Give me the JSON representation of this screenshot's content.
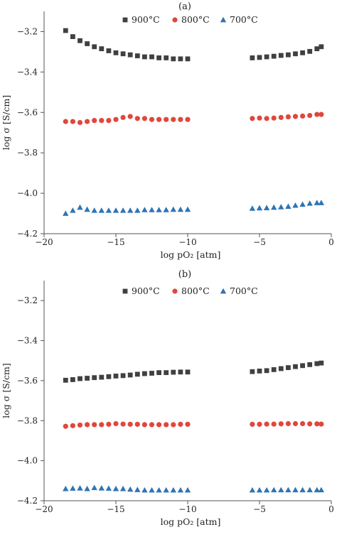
{
  "chart_data": [
    {
      "type": "scatter",
      "panel_label": "(a)",
      "xlabel": "log pO₂ [atm]",
      "ylabel": "log σ [S/cm]",
      "xlim": [
        -20,
        0
      ],
      "ylim": [
        -4.2,
        -3.1
      ],
      "xticks": [
        "−20",
        "−15",
        "−10",
        "−5",
        "0"
      ],
      "yticks": [
        "−3.2",
        "−3.4",
        "−3.6",
        "−3.8",
        "−4.0",
        "−4.2"
      ],
      "legend_position": "top",
      "grid": false,
      "series": [
        {
          "name": "900°C",
          "marker": "square",
          "color": "#404040",
          "x": [
            -18.5,
            -18.0,
            -17.5,
            -17.0,
            -16.5,
            -16.0,
            -15.5,
            -15.0,
            -14.5,
            -14.0,
            -13.5,
            -13.0,
            -12.5,
            -12.0,
            -11.5,
            -11.0,
            -10.5,
            -10.0,
            -5.5,
            -5.0,
            -4.5,
            -4.0,
            -3.5,
            -3.0,
            -2.5,
            -2.0,
            -1.5,
            -1.0,
            -0.7
          ],
          "y": [
            -3.195,
            -3.225,
            -3.245,
            -3.26,
            -3.275,
            -3.285,
            -3.295,
            -3.305,
            -3.31,
            -3.315,
            -3.32,
            -3.325,
            -3.325,
            -3.33,
            -3.33,
            -3.335,
            -3.335,
            -3.335,
            -3.33,
            -3.328,
            -3.325,
            -3.322,
            -3.318,
            -3.315,
            -3.31,
            -3.305,
            -3.298,
            -3.285,
            -3.275
          ]
        },
        {
          "name": "800°C",
          "marker": "circle",
          "color": "#e0473c",
          "x": [
            -18.5,
            -18.0,
            -17.5,
            -17.0,
            -16.5,
            -16.0,
            -15.5,
            -15.0,
            -14.5,
            -14.0,
            -13.5,
            -13.0,
            -12.5,
            -12.0,
            -11.5,
            -11.0,
            -10.5,
            -10.0,
            -5.5,
            -5.0,
            -4.5,
            -4.0,
            -3.5,
            -3.0,
            -2.5,
            -2.0,
            -1.5,
            -1.0,
            -0.7
          ],
          "y": [
            -3.645,
            -3.645,
            -3.65,
            -3.645,
            -3.64,
            -3.64,
            -3.64,
            -3.635,
            -3.625,
            -3.62,
            -3.63,
            -3.63,
            -3.635,
            -3.635,
            -3.635,
            -3.635,
            -3.635,
            -3.635,
            -3.63,
            -3.628,
            -3.63,
            -3.628,
            -3.625,
            -3.622,
            -3.62,
            -3.618,
            -3.615,
            -3.61,
            -3.61
          ]
        },
        {
          "name": "700°C",
          "marker": "triangle",
          "color": "#2f74b5",
          "x": [
            -18.5,
            -18.0,
            -17.5,
            -17.0,
            -16.5,
            -16.0,
            -15.5,
            -15.0,
            -14.5,
            -14.0,
            -13.5,
            -13.0,
            -12.5,
            -12.0,
            -11.5,
            -11.0,
            -10.5,
            -10.0,
            -5.5,
            -5.0,
            -4.5,
            -4.0,
            -3.5,
            -3.0,
            -2.5,
            -2.0,
            -1.5,
            -1.0,
            -0.7
          ],
          "y": [
            -4.1,
            -4.085,
            -4.07,
            -4.08,
            -4.085,
            -4.085,
            -4.085,
            -4.085,
            -4.085,
            -4.085,
            -4.085,
            -4.082,
            -4.082,
            -4.082,
            -4.082,
            -4.08,
            -4.08,
            -4.08,
            -4.075,
            -4.073,
            -4.072,
            -4.07,
            -4.068,
            -4.065,
            -4.06,
            -4.055,
            -4.05,
            -4.047,
            -4.047
          ]
        }
      ]
    },
    {
      "type": "scatter",
      "panel_label": "(b)",
      "xlabel": "log pO₂ [atm]",
      "ylabel": "log σ [S/cm]",
      "xlim": [
        -20,
        0
      ],
      "ylim": [
        -4.2,
        -3.1
      ],
      "xticks": [
        "−20",
        "−15",
        "−10",
        "−5",
        "0"
      ],
      "yticks": [
        "−3.2",
        "−3.4",
        "−3.6",
        "−3.8",
        "−4.0",
        "−4.2"
      ],
      "legend_position": "top",
      "grid": false,
      "series": [
        {
          "name": "900°C",
          "marker": "square",
          "color": "#404040",
          "x": [
            -18.5,
            -18.0,
            -17.5,
            -17.0,
            -16.5,
            -16.0,
            -15.5,
            -15.0,
            -14.5,
            -14.0,
            -13.5,
            -13.0,
            -12.5,
            -12.0,
            -11.5,
            -11.0,
            -10.5,
            -10.0,
            -5.5,
            -5.0,
            -4.5,
            -4.0,
            -3.5,
            -3.0,
            -2.5,
            -2.0,
            -1.5,
            -1.0,
            -0.7
          ],
          "y": [
            -3.598,
            -3.595,
            -3.59,
            -3.588,
            -3.585,
            -3.583,
            -3.58,
            -3.577,
            -3.575,
            -3.572,
            -3.568,
            -3.565,
            -3.563,
            -3.56,
            -3.56,
            -3.558,
            -3.557,
            -3.557,
            -3.555,
            -3.552,
            -3.55,
            -3.545,
            -3.54,
            -3.535,
            -3.53,
            -3.525,
            -3.52,
            -3.515,
            -3.512
          ]
        },
        {
          "name": "800°C",
          "marker": "circle",
          "color": "#e0473c",
          "x": [
            -18.5,
            -18.0,
            -17.5,
            -17.0,
            -16.5,
            -16.0,
            -15.5,
            -15.0,
            -14.5,
            -14.0,
            -13.5,
            -13.0,
            -12.5,
            -12.0,
            -11.5,
            -11.0,
            -10.5,
            -10.0,
            -5.5,
            -5.0,
            -4.5,
            -4.0,
            -3.5,
            -3.0,
            -2.5,
            -2.0,
            -1.5,
            -1.0,
            -0.7
          ],
          "y": [
            -3.828,
            -3.825,
            -3.822,
            -3.82,
            -3.82,
            -3.82,
            -3.818,
            -3.815,
            -3.817,
            -3.818,
            -3.818,
            -3.82,
            -3.82,
            -3.82,
            -3.82,
            -3.82,
            -3.818,
            -3.818,
            -3.818,
            -3.818,
            -3.817,
            -3.817,
            -3.816,
            -3.815,
            -3.815,
            -3.815,
            -3.816,
            -3.816,
            -3.817
          ]
        },
        {
          "name": "700°C",
          "marker": "triangle",
          "color": "#2f74b5",
          "x": [
            -18.5,
            -18.0,
            -17.5,
            -17.0,
            -16.5,
            -16.0,
            -15.5,
            -15.0,
            -14.5,
            -14.0,
            -13.5,
            -13.0,
            -12.5,
            -12.0,
            -11.5,
            -11.0,
            -10.5,
            -10.0,
            -5.5,
            -5.0,
            -4.5,
            -4.0,
            -3.5,
            -3.0,
            -2.5,
            -2.0,
            -1.5,
            -1.0,
            -0.7
          ],
          "y": [
            -4.14,
            -4.138,
            -4.137,
            -4.14,
            -4.135,
            -4.137,
            -4.138,
            -4.14,
            -4.14,
            -4.143,
            -4.145,
            -4.147,
            -4.147,
            -4.147,
            -4.147,
            -4.147,
            -4.147,
            -4.147,
            -4.147,
            -4.147,
            -4.147,
            -4.146,
            -4.146,
            -4.146,
            -4.146,
            -4.146,
            -4.146,
            -4.146,
            -4.146
          ]
        }
      ]
    }
  ]
}
